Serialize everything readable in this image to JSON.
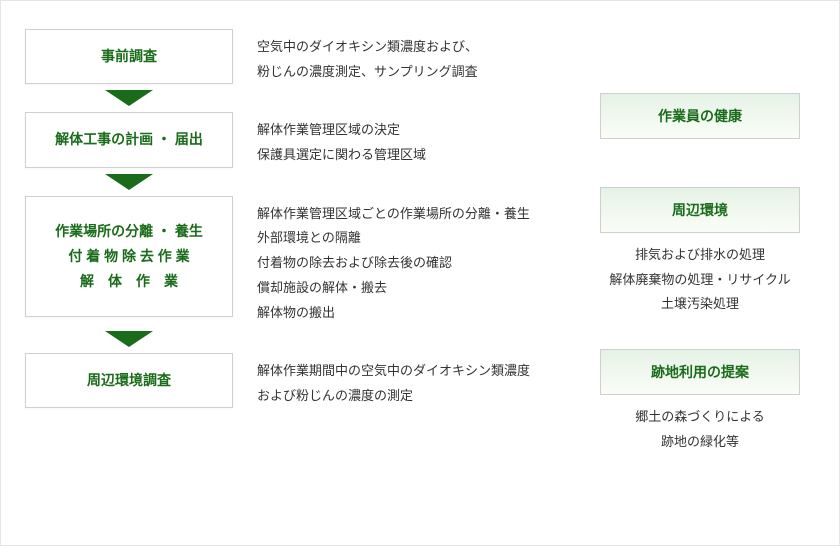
{
  "colors": {
    "accent": "#1a6b1a",
    "border": "#d0d0d0",
    "text": "#333333",
    "bg": "#ffffff",
    "gradTop": "#e6f2e6",
    "gradBot": "#fafdf7"
  },
  "steps": [
    {
      "title": "事前調査",
      "desc": "空気中のダイオキシン類濃度および、\n粉じんの濃度測定、サンプリング調査"
    },
    {
      "title": "解体工事の計画 ・ 届出",
      "desc": "解体作業管理区域の決定\n保護具選定に関わる管理区域"
    },
    {
      "title": "作業場所の分離 ・ 養生\n付 着 物 除 去 作 業\n解　体　作　業",
      "desc": "解体作業管理区域ごとの作業場所の分離・養生\n外部環境との隔離\n付着物の除去および除去後の確認\n償却施設の解体・搬去\n解体物の搬出"
    },
    {
      "title": "周辺環境調査",
      "desc": "解体作業期間中の空気中のダイオキシン類濃度\nおよび粉じんの濃度の測定"
    }
  ],
  "sidebar": [
    {
      "title": "作業員の健康",
      "desc": ""
    },
    {
      "title": "周辺環境",
      "desc": "排気および排水の処理\n解体廃棄物の処理・リサイクル\n土壌汚染処理"
    },
    {
      "title": "跡地利用の提案",
      "desc": "郷土の森づくりによる\n跡地の緑化等"
    }
  ]
}
